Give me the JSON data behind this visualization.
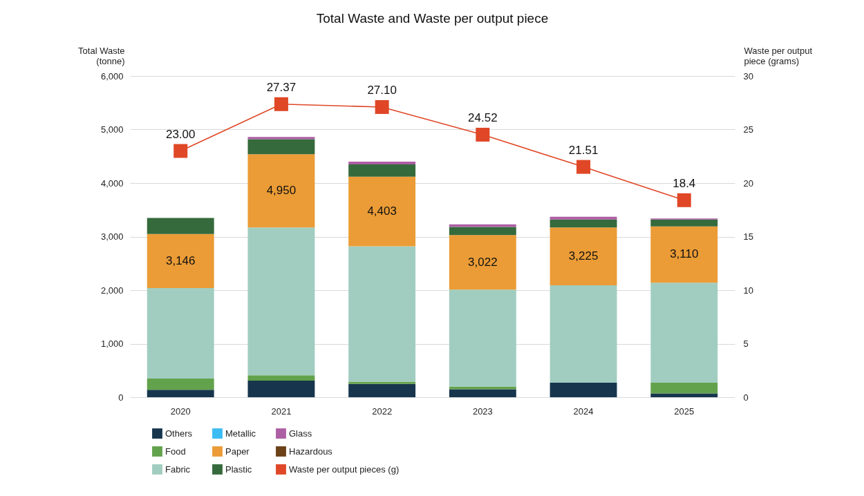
{
  "chart_data": {
    "type": "bar",
    "title": "Total Waste and Waste per output piece",
    "ylabel": "Total Waste (tonne)",
    "y2label": "Waste per output piece (grams)",
    "categories": [
      "2020",
      "2021",
      "2022",
      "2023",
      "2024",
      "2025"
    ],
    "stacked": true,
    "ylim": [
      0,
      6000
    ],
    "yticks": [
      0,
      {
        "value": 1000,
        "label": "1,000"
      },
      {
        "value": 2000,
        "label": "2,000"
      },
      {
        "value": 3000,
        "label": "3,000"
      },
      {
        "value": 4000,
        "label": "4,000"
      },
      {
        "value": 5000,
        "label": "5,000"
      },
      {
        "value": 6000,
        "label": "6,000"
      }
    ],
    "y2lim": [
      0,
      30
    ],
    "y2ticks": [
      0,
      5,
      10,
      15,
      20,
      25,
      30
    ],
    "grid": "y",
    "legend": "bottom",
    "marker": "square",
    "line_style": "solid",
    "series": [
      {
        "name": "Others",
        "color": "#17364d",
        "values": [
          140,
          310,
          250,
          150,
          270,
          70
        ]
      },
      {
        "name": "Food",
        "color": "#63a24c",
        "values": [
          210,
          100,
          40,
          50,
          0,
          200
        ]
      },
      {
        "name": "Fabric",
        "color": "#a1cdc0",
        "values": [
          1690,
          2760,
          2530,
          1810,
          1820,
          1870
        ]
      },
      {
        "name": "Metallic",
        "color": "#3bbcf3",
        "values": [
          0,
          0,
          0,
          0,
          0,
          0
        ]
      },
      {
        "name": "Paper",
        "color": "#eb9c36",
        "values": [
          1010,
          1370,
          1300,
          1020,
          1080,
          1050
        ]
      },
      {
        "name": "Plastic",
        "color": "#356a3c",
        "values": [
          300,
          280,
          230,
          150,
          150,
          130
        ]
      },
      {
        "name": "Glass",
        "color": "#ad5fa4",
        "values": [
          0,
          40,
          50,
          50,
          50,
          20
        ]
      },
      {
        "name": "Hazardous",
        "color": "#6b4118",
        "values": [
          0,
          0,
          0,
          0,
          0,
          0
        ]
      },
      {
        "name": "Waste per output pieces (g)",
        "type": "line",
        "axis": "y2",
        "color": "#df4726",
        "values": [
          23.0,
          27.37,
          27.1,
          24.52,
          21.51,
          18.4
        ],
        "value_labels": [
          "23.00",
          "27.37",
          "27.10",
          "24.52",
          "21.51",
          "18.4"
        ]
      }
    ],
    "annotations": [
      "3,146",
      "4,950",
      "4,403",
      "3,022",
      "3,225",
      "3,110"
    ]
  }
}
